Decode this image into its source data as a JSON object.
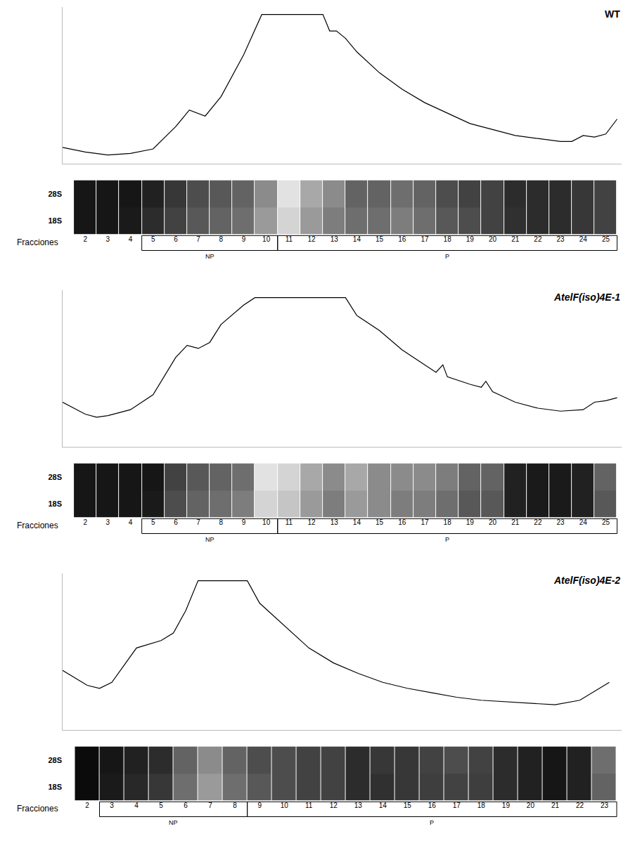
{
  "chart_data": [
    {
      "type": "line",
      "title": "WT",
      "color": "#000000",
      "x": [
        1,
        2,
        3,
        4,
        5,
        6,
        6.6,
        7.3,
        8,
        9,
        9.8,
        12.5,
        12.8,
        13.1,
        13.5,
        14,
        15,
        16,
        17,
        18,
        19,
        20,
        21,
        22,
        23,
        23.5,
        24,
        24.5,
        25,
        25.5
      ],
      "values": [
        11,
        8,
        6,
        7,
        10,
        25,
        36,
        32,
        45,
        73,
        100,
        100,
        89,
        89,
        84,
        75,
        61,
        50,
        41,
        34,
        27,
        23,
        19,
        17,
        15,
        15,
        19,
        18,
        20,
        30
      ],
      "xlim": [
        1,
        25.7
      ],
      "ylim": [
        0,
        105
      ],
      "tick_labels": false,
      "gel": {
        "type": "heatmap",
        "axis_label": "Fracciones",
        "row_labels": [
          "28S",
          "18S"
        ],
        "fractions": [
          2,
          3,
          4,
          5,
          6,
          7,
          8,
          9,
          10,
          11,
          12,
          13,
          14,
          15,
          16,
          17,
          18,
          19,
          20,
          21,
          22,
          23,
          24,
          25
        ],
        "cells": [
          [
            0.1,
            0.1,
            0.1,
            0.15,
            0.25,
            0.35,
            0.4,
            0.45,
            0.6,
            0.9,
            0.7,
            0.6,
            0.45,
            0.45,
            0.5,
            0.45,
            0.35,
            0.3,
            0.3,
            0.2,
            0.2,
            0.2,
            0.25,
            0.3
          ],
          [
            0.1,
            0.1,
            0.12,
            0.2,
            0.3,
            0.4,
            0.45,
            0.5,
            0.65,
            0.85,
            0.65,
            0.55,
            0.5,
            0.5,
            0.55,
            0.5,
            0.4,
            0.35,
            0.3,
            0.22,
            0.2,
            0.2,
            0.25,
            0.3
          ]
        ],
        "zlim": [
          0,
          1
        ]
      },
      "groups": [
        {
          "label": "NP",
          "from": 5,
          "to": 10
        },
        {
          "label": "P",
          "from": 11,
          "to": 25
        }
      ]
    },
    {
      "type": "line",
      "title": "AtelF(iso)4E-1",
      "color": "#000000",
      "x": [
        1,
        2,
        2.5,
        3,
        4,
        5,
        6,
        6.5,
        7,
        7.5,
        8,
        9,
        9.5,
        13.5,
        14,
        15,
        16,
        17,
        17.5,
        17.8,
        18,
        19,
        19.5,
        19.7,
        20,
        21,
        22,
        23,
        24,
        24.5,
        25,
        25.5
      ],
      "values": [
        30,
        22,
        20,
        21,
        25,
        35,
        60,
        68,
        66,
        70,
        82,
        95,
        100,
        100,
        88,
        78,
        65,
        55,
        50,
        55,
        47,
        42,
        40,
        44,
        37,
        30,
        26,
        24,
        25,
        30,
        31,
        33
      ],
      "xlim": [
        1,
        25.7
      ],
      "ylim": [
        0,
        105
      ],
      "tick_labels": false,
      "gel": {
        "type": "heatmap",
        "axis_label": "Fracciones",
        "row_labels": [
          "28S",
          "18S"
        ],
        "fractions": [
          2,
          3,
          4,
          5,
          6,
          7,
          8,
          9,
          10,
          11,
          12,
          13,
          14,
          15,
          16,
          17,
          18,
          19,
          20,
          21,
          22,
          23,
          24,
          25
        ],
        "cells": [
          [
            0.1,
            0.1,
            0.1,
            0.1,
            0.3,
            0.4,
            0.45,
            0.5,
            0.9,
            0.85,
            0.7,
            0.6,
            0.7,
            0.6,
            0.6,
            0.6,
            0.55,
            0.45,
            0.45,
            0.15,
            0.12,
            0.12,
            0.15,
            0.45
          ],
          [
            0.1,
            0.1,
            0.1,
            0.12,
            0.35,
            0.45,
            0.5,
            0.55,
            0.85,
            0.8,
            0.65,
            0.55,
            0.65,
            0.6,
            0.55,
            0.55,
            0.5,
            0.4,
            0.4,
            0.15,
            0.12,
            0.12,
            0.15,
            0.4
          ]
        ],
        "zlim": [
          0,
          1
        ]
      },
      "groups": [
        {
          "label": "NP",
          "from": 5,
          "to": 10
        },
        {
          "label": "P",
          "from": 11,
          "to": 25
        }
      ]
    },
    {
      "type": "line",
      "title": "AtelF(iso)4E-2",
      "color": "#000000",
      "x": [
        1,
        2,
        2.5,
        3,
        4,
        5,
        5.5,
        6,
        6.5,
        8.5,
        9,
        10,
        11,
        12,
        13,
        14,
        15,
        16,
        17,
        18,
        19,
        20,
        21,
        22,
        22.5,
        23.2
      ],
      "values": [
        40,
        30,
        28,
        32,
        55,
        60,
        65,
        80,
        100,
        100,
        85,
        70,
        55,
        45,
        38,
        32,
        28,
        25,
        22,
        20,
        19,
        18,
        17,
        20,
        25,
        32
      ],
      "xlim": [
        1,
        23.7
      ],
      "ylim": [
        0,
        105
      ],
      "tick_labels": false,
      "gel": {
        "type": "heatmap",
        "axis_label": "Fracciones",
        "row_labels": [
          "28S",
          "18S"
        ],
        "fractions": [
          2,
          3,
          4,
          5,
          6,
          7,
          8,
          9,
          10,
          11,
          12,
          13,
          14,
          15,
          16,
          17,
          18,
          19,
          20,
          21,
          22,
          23
        ],
        "cells": [
          [
            0.05,
            0.1,
            0.15,
            0.2,
            0.45,
            0.6,
            0.45,
            0.35,
            0.35,
            0.3,
            0.3,
            0.2,
            0.25,
            0.25,
            0.3,
            0.35,
            0.3,
            0.2,
            0.15,
            0.1,
            0.15,
            0.5
          ],
          [
            0.05,
            0.12,
            0.18,
            0.25,
            0.5,
            0.65,
            0.5,
            0.4,
            0.35,
            0.3,
            0.3,
            0.2,
            0.22,
            0.25,
            0.28,
            0.3,
            0.28,
            0.2,
            0.15,
            0.1,
            0.15,
            0.45
          ]
        ],
        "zlim": [
          0,
          1
        ]
      },
      "groups": [
        {
          "label": "NP",
          "from": 3,
          "to": 8
        },
        {
          "label": "P",
          "from": 9,
          "to": 23
        }
      ]
    }
  ]
}
